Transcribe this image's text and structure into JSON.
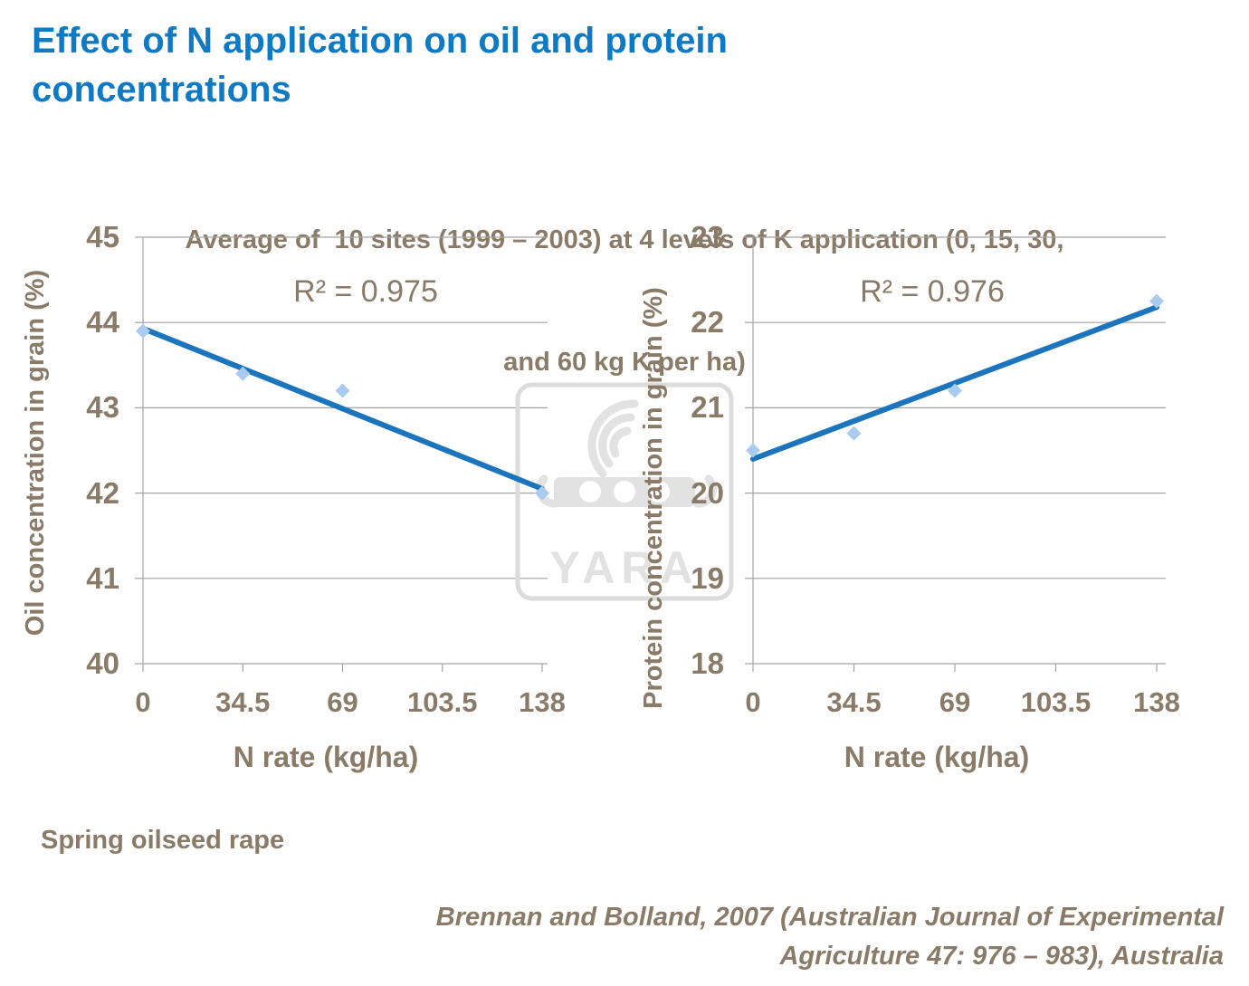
{
  "page": {
    "title": "Effect of N application on oil and protein concentrations",
    "subtitle_lines": [
      "Average of  10 sites (1999 – 2003) at 4 levels of K application (0, 15, 30,",
      "and 60 kg K per ha)"
    ],
    "footnote": "Spring oilseed rape",
    "source_lines": [
      "Brennan and Bolland, 2007 (Australian Journal of Experimental",
      "Agriculture 47: 976 – 983), Australia"
    ],
    "watermark_text": "YARA"
  },
  "colors": {
    "title_blue": "#0E7AC4",
    "text_brown": "#8A7A68",
    "gridline_gray": "#A3A3A3",
    "trend_blue": "#1B74BC",
    "marker_light_blue": "#A9CBEF",
    "watermark_gray": "#E2E2E2"
  },
  "chart_data": [
    {
      "type": "scatter",
      "r2_label": "R² = 0.975",
      "xlabel": "N rate (kg/ha)",
      "ylabel": "Oil concentration in grain (%)",
      "x": [
        0,
        34.5,
        69,
        138
      ],
      "y": [
        43.9,
        43.4,
        43.2,
        42.0
      ],
      "trend": {
        "x": [
          0,
          138
        ],
        "y": [
          43.93,
          42.05
        ]
      },
      "xticks": [
        0,
        34.5,
        69,
        103.5,
        138
      ],
      "yticks": [
        40,
        41,
        42,
        43,
        44,
        45
      ],
      "xlim": [
        0,
        138
      ],
      "ylim": [
        40,
        45
      ],
      "grid": true,
      "legend": "none",
      "marker": "diamond"
    },
    {
      "type": "scatter",
      "r2_label": "R² = 0.976",
      "xlabel": "N rate (kg/ha)",
      "ylabel": "Protein concentration in grain (%)",
      "x": [
        0,
        34.5,
        69,
        138
      ],
      "y": [
        20.5,
        20.7,
        21.2,
        22.25
      ],
      "trend": {
        "x": [
          0,
          138
        ],
        "y": [
          20.4,
          22.18
        ]
      },
      "xticks": [
        0,
        34.5,
        69,
        103.5,
        138
      ],
      "yticks": [
        18,
        19,
        20,
        21,
        22,
        23
      ],
      "xlim": [
        0,
        138
      ],
      "ylim": [
        18,
        23
      ],
      "grid": true,
      "legend": "none",
      "marker": "diamond"
    }
  ]
}
